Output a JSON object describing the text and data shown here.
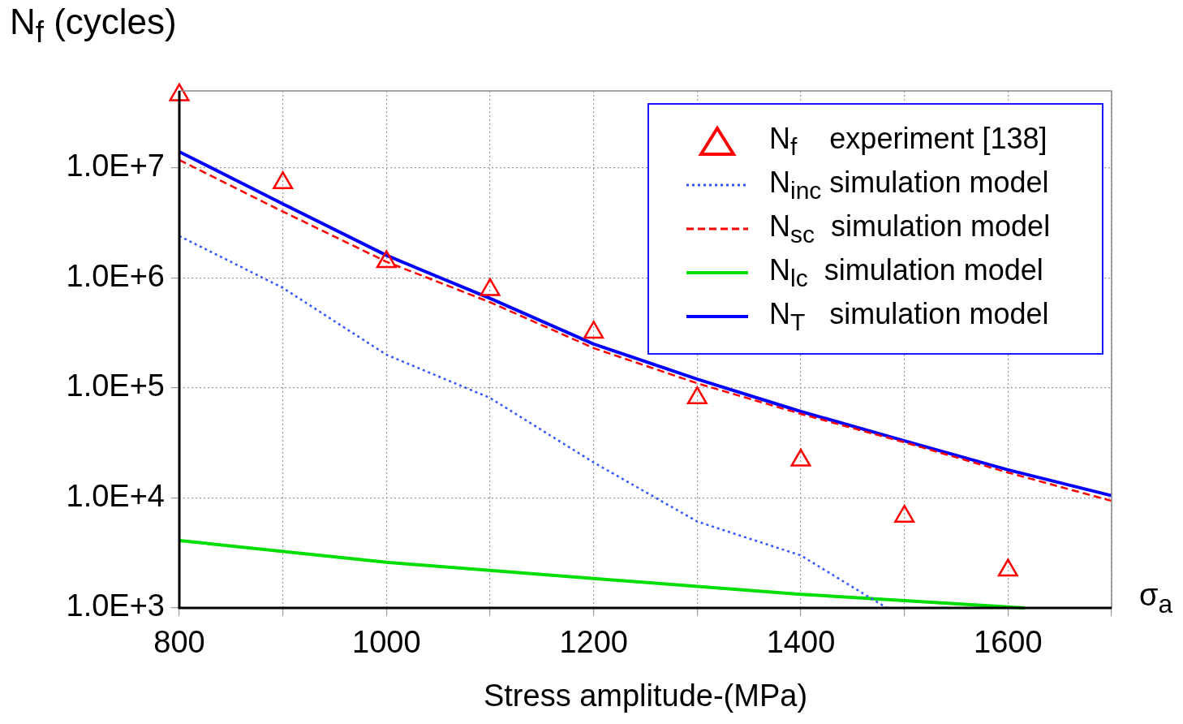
{
  "chart_data": {
    "type": "line",
    "ylabel": "N$_{f}$ (cycles)",
    "xlabel": "Stress amplitude-(MPa)",
    "annotations": [
      "σ$_{a}$"
    ],
    "xlim": [
      800,
      1700
    ],
    "xticks": [
      800,
      {
        "value": 900,
        "label": null
      },
      1000,
      {
        "value": 1100,
        "label": null
      },
      1200,
      {
        "value": 1300,
        "label": null
      },
      1400,
      {
        "value": 1500,
        "label": null
      },
      1600,
      {
        "value": 1700,
        "label": null
      }
    ],
    "ylim": [
      1000,
      50000000
    ],
    "yticks": [
      {
        "value": 1000,
        "label": "1.0E+3"
      },
      {
        "value": 10000,
        "label": "1.0E+4"
      },
      {
        "value": 100000,
        "label": "1.0E+5"
      },
      {
        "value": 1000000,
        "label": "1.0E+6"
      },
      {
        "value": 10000000,
        "label": "1.0E+7"
      }
    ],
    "log": "y",
    "grid": true,
    "legend": "top right",
    "series": [
      {
        "type": "scatter",
        "name": "N$_{f}$    experiment [138]",
        "color": "#ff0000",
        "marker": "triangle",
        "x": [
          800,
          900,
          1000,
          1100,
          1200,
          1300,
          1400,
          1500,
          1600
        ],
        "values": [
          46000000,
          7300000,
          1400000,
          780000,
          320000,
          81000,
          22000,
          6800,
          2200
        ]
      },
      {
        "type": "line",
        "name": "N$_{inc}$ simulation model",
        "color": "#3355ff",
        "line_style": "dotted",
        "x": [
          800,
          900,
          1000,
          1100,
          1200,
          1300,
          1400,
          1483
        ],
        "values": [
          2400000,
          810000,
          200000,
          81000,
          21000,
          6100,
          3000,
          1000
        ]
      },
      {
        "type": "line",
        "name": "N$_{sc}$  simulation model",
        "color": "#ff0000",
        "line_style": "dashed",
        "x": [
          800,
          900,
          1000,
          1100,
          1200,
          1300,
          1400,
          1500,
          1600,
          1700
        ],
        "values": [
          11800000,
          4000000,
          1400000,
          600000,
          230000,
          110000,
          58000,
          32000,
          17000,
          9400
        ]
      },
      {
        "type": "line",
        "name": "N$_{lc}$  simulation model",
        "color": "#00dd00",
        "line_style": "solid",
        "x": [
          800,
          1000,
          1200,
          1400,
          1616
        ],
        "values": [
          4100,
          2600,
          1850,
          1330,
          1000
        ]
      },
      {
        "type": "line",
        "name": "N$_{T}$   simulation model",
        "color": "#0000ff",
        "line_style": "solid",
        "x": [
          800,
          900,
          1000,
          1100,
          1200,
          1300,
          1400,
          1500,
          1600,
          1700
        ],
        "values": [
          14000000,
          4700000,
          1600000,
          650000,
          250000,
          120000,
          61000,
          33000,
          18000,
          10500
        ]
      }
    ]
  }
}
